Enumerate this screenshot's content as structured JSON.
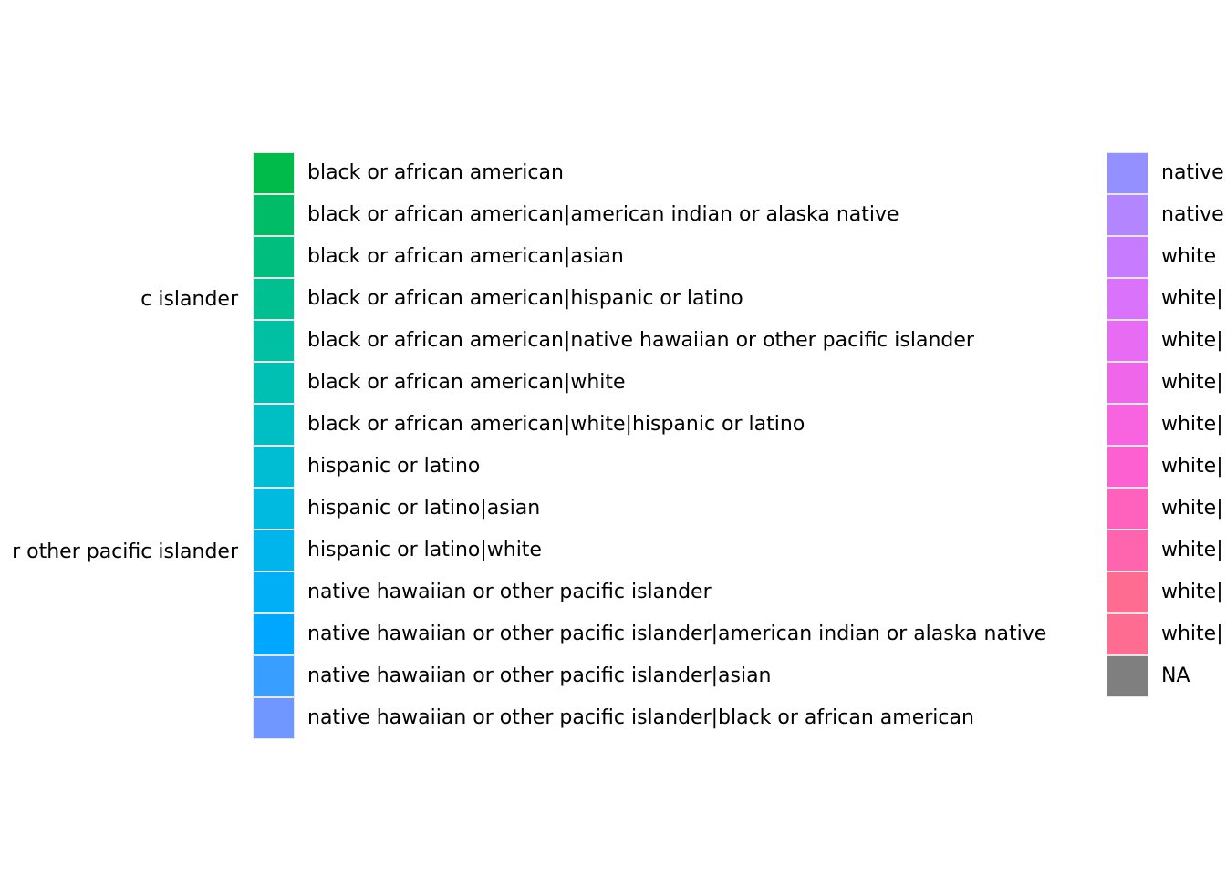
{
  "chart_data": {
    "type": "legend",
    "title": "",
    "columns": [
      {
        "entries": [
          {
            "label": "c islander"
          },
          {
            "label": "r other pacific islander"
          }
        ]
      },
      {
        "entries": [
          {
            "label": "black or african american",
            "color": "#00BA4A"
          },
          {
            "label": "black or african american|american indian or alaska native",
            "color": "#00BC66"
          },
          {
            "label": "black or african american|asian",
            "color": "#00BE7D"
          },
          {
            "label": "black or african american|hispanic or latino",
            "color": "#00BF91"
          },
          {
            "label": "black or african american|native hawaiian or other pacific islander",
            "color": "#00C0A3"
          },
          {
            "label": "black or african american|white",
            "color": "#00C0B4"
          },
          {
            "label": "black or african american|white|hispanic or latino",
            "color": "#00BFC4"
          },
          {
            "label": "hispanic or latino",
            "color": "#00BDD3"
          },
          {
            "label": "hispanic or latino|asian",
            "color": "#00BAE0"
          },
          {
            "label": "hispanic or latino|white",
            "color": "#00B5EC"
          },
          {
            "label": "native hawaiian or other pacific islander",
            "color": "#00AFF6"
          },
          {
            "label": "native hawaiian or other pacific islander|american indian or alaska native",
            "color": "#00A7FF"
          },
          {
            "label": "native hawaiian or other pacific islander|asian",
            "color": "#389EFF"
          },
          {
            "label": "native hawaiian or other pacific islander|black or african american",
            "color": "#7097FF"
          }
        ]
      },
      {
        "entries": [
          {
            "label": "native",
            "color": "#9590FF"
          },
          {
            "label": "native",
            "color": "#B385FF"
          },
          {
            "label": "white",
            "color": "#C77CFF"
          },
          {
            "label": "white|",
            "color": "#DB72FB"
          },
          {
            "label": "white|",
            "color": "#E76BF3"
          },
          {
            "label": "white|",
            "color": "#F066EA"
          },
          {
            "label": "white|",
            "color": "#F863DF"
          },
          {
            "label": "white|",
            "color": "#FD61D1"
          },
          {
            "label": "white|",
            "color": "#FF62BC"
          },
          {
            "label": "white|",
            "color": "#FF65AE"
          },
          {
            "label": "white|",
            "color": "#FF6C91"
          },
          {
            "label": "white|",
            "color": "#FF6C91"
          },
          {
            "label": "NA",
            "color": "#7F7F7F"
          }
        ]
      }
    ]
  }
}
